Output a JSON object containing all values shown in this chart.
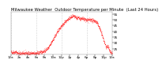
{
  "title": "Milwaukee Weather  Outdoor Temperature per Minute  (Last 24 Hours)",
  "line_color": "#ff0000",
  "background_color": "#ffffff",
  "grid_color": "#aaaaaa",
  "ylim": [
    20,
    57
  ],
  "yticks": [
    25,
    30,
    35,
    40,
    45,
    50,
    55
  ],
  "title_fontsize": 3.8,
  "tick_fontsize": 3.0,
  "num_points": 1440,
  "ctrl_hours": [
    0,
    0.5,
    1,
    2,
    3,
    4,
    5,
    6,
    7,
    8,
    9,
    10,
    11,
    12,
    13,
    14,
    14.5,
    15,
    15.5,
    16,
    16.5,
    17,
    18,
    19,
    20,
    20.5,
    21,
    21.5,
    22,
    22.5,
    23,
    23.5,
    24
  ],
  "ctrl_temps": [
    22,
    22,
    22,
    21,
    21,
    21,
    21,
    21,
    22,
    23,
    27,
    33,
    40,
    45,
    49,
    52,
    53,
    53,
    52,
    52,
    51,
    51,
    50,
    50,
    49,
    47,
    43,
    38,
    32,
    27,
    27,
    22,
    21
  ],
  "noise_std": 0.8,
  "x_tick_hours": [
    0,
    2,
    4,
    6,
    8,
    10,
    12,
    14,
    16,
    18,
    20,
    22,
    24
  ],
  "x_tick_labels": [
    "12a",
    "2a",
    "4a",
    "6a",
    "8a",
    "10a",
    "12p",
    "2p",
    "4p",
    "6p",
    "8p",
    "10p",
    "12a"
  ],
  "grid_hours": [
    0,
    6,
    12,
    18,
    24
  ]
}
